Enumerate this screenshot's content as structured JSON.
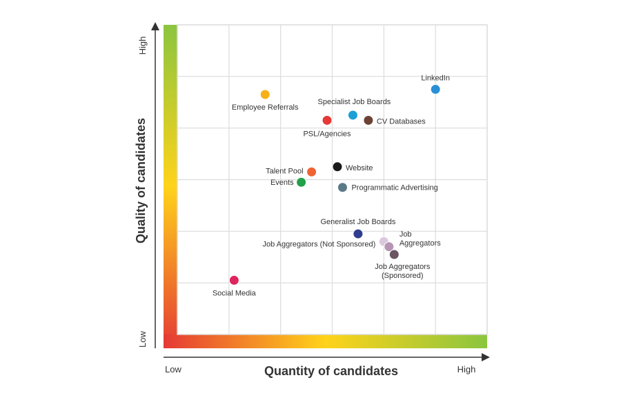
{
  "chart_data": {
    "type": "scatter",
    "title": "",
    "xlabel": "Quantity of candidates",
    "ylabel": "Quality of candidates",
    "x_low_label": "Low",
    "x_high_label": "High",
    "y_low_label": "Low",
    "y_high_label": "High",
    "xlim": [
      0,
      6
    ],
    "ylim": [
      0,
      6
    ],
    "grid": true,
    "background": "gradient from red (bottom-left) through yellow to green (top and right edges)",
    "colors": {
      "gradient_low": "#e53935",
      "gradient_mid": "#ffd31a",
      "gradient_high": "#8bc53f",
      "grid": "#dcdcdc",
      "axis": "#333333"
    },
    "points": [
      {
        "label": "LinkedIn",
        "x": 5.0,
        "y": 4.75,
        "color": "#2a8fd6"
      },
      {
        "label": "Employee Referrals",
        "x": 1.7,
        "y": 4.65,
        "color": "#f5b11a"
      },
      {
        "label": "Specialist Job Boards",
        "x": 3.4,
        "y": 4.25,
        "color": "#1ba0d7"
      },
      {
        "label": "PSL/Agencies",
        "x": 2.9,
        "y": 4.15,
        "color": "#e53935"
      },
      {
        "label": "CV Databases",
        "x": 3.7,
        "y": 4.15,
        "color": "#6d4234"
      },
      {
        "label": "Website",
        "x": 3.1,
        "y": 3.25,
        "color": "#1a1a1a"
      },
      {
        "label": "Talent Pool",
        "x": 2.6,
        "y": 3.15,
        "color": "#f06333"
      },
      {
        "label": "Events",
        "x": 2.4,
        "y": 2.95,
        "color": "#22a04a"
      },
      {
        "label": "Programmatic Advertising",
        "x": 3.2,
        "y": 2.85,
        "color": "#5b7a88"
      },
      {
        "label": "Generalist Job Boards",
        "x": 3.5,
        "y": 1.95,
        "color": "#2f3d8f"
      },
      {
        "label": "Job Aggregators (Not Sponsored)",
        "x": 4.0,
        "y": 1.8,
        "color": "#dcc8dd"
      },
      {
        "label": "Job Aggregators",
        "x": 4.1,
        "y": 1.7,
        "color": "#b695b4"
      },
      {
        "label": "Job Aggregators (Sponsored)",
        "x": 4.2,
        "y": 1.55,
        "color": "#6b5563"
      },
      {
        "label": "Social Media",
        "x": 1.1,
        "y": 1.05,
        "color": "#e0245e"
      }
    ],
    "point_label_lines": [
      [
        "LinkedIn"
      ],
      [
        "Employee Referrals"
      ],
      [
        "Specialist Job Boards"
      ],
      [
        "PSL/Agencies"
      ],
      [
        "CV Databases"
      ],
      [
        "Website"
      ],
      [
        "Talent Pool"
      ],
      [
        "Events"
      ],
      [
        "Programmatic Advertising"
      ],
      [
        "Generalist Job Boards"
      ],
      [
        "Job Aggregators (Not Sponsored)"
      ],
      [
        "Job",
        "Aggregators"
      ],
      [
        "Job Aggregators",
        "(Sponsored)"
      ],
      [
        "Social Media"
      ]
    ]
  }
}
